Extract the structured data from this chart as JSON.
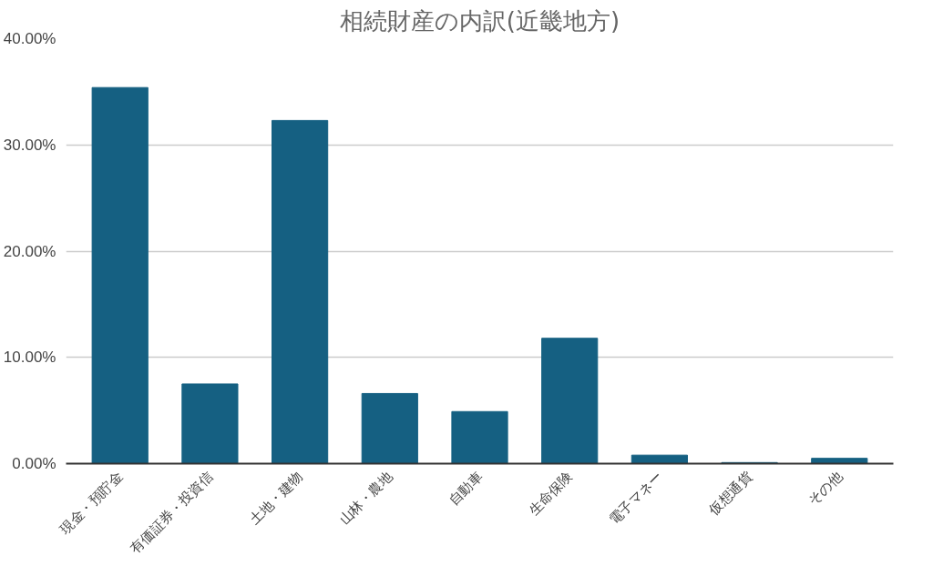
{
  "chart_data": {
    "type": "bar",
    "title": "相続財産の内訳(近畿地方)",
    "categories": [
      "現金・預貯金",
      "有価証券・投資信",
      "土地・建物",
      "山林・農地",
      "自動車",
      "生命保険",
      "電子マネー",
      "仮想通貨",
      "その他"
    ],
    "values": [
      35.4,
      7.5,
      32.3,
      6.6,
      4.9,
      11.8,
      0.8,
      0.1,
      0.5
    ],
    "color": "#156082",
    "ylim": [
      0,
      40
    ],
    "yticks": [
      {
        "value": 0,
        "label": "0.00%"
      },
      {
        "value": 10,
        "label": "10.00%"
      },
      {
        "value": 20,
        "label": "20.00%"
      },
      {
        "value": 30,
        "label": "30.00%"
      },
      {
        "value": 40,
        "label": "40.00%"
      }
    ],
    "grid": "y"
  }
}
